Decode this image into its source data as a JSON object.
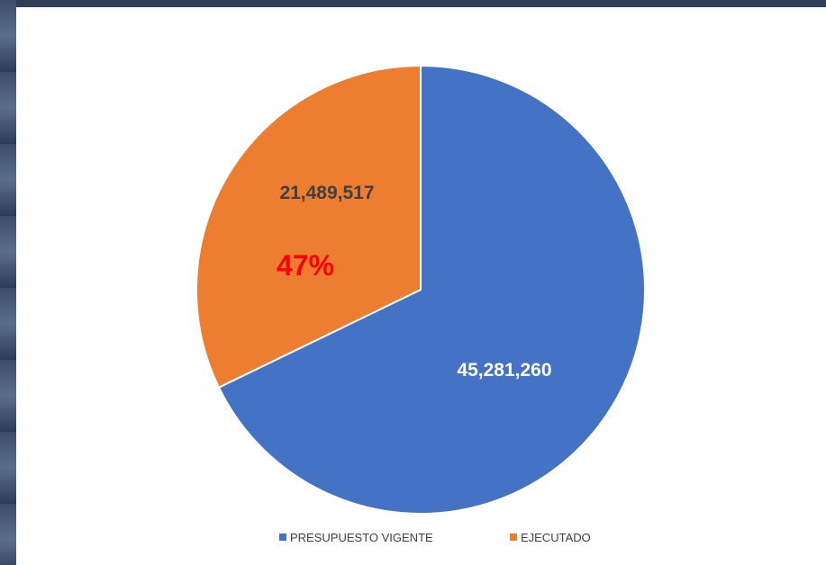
{
  "chart_data": {
    "type": "pie",
    "categories": [
      "PRESUPUESTO VIGENTE",
      "EJECUTADO"
    ],
    "values": [
      45281260,
      21489517
    ],
    "value_labels": [
      "45,281,260",
      "21,489,517"
    ],
    "colors": [
      "#4472c4",
      "#ed7d31"
    ],
    "annotation": "47%",
    "annotation_color": "#ff0000",
    "legend_position": "bottom"
  }
}
